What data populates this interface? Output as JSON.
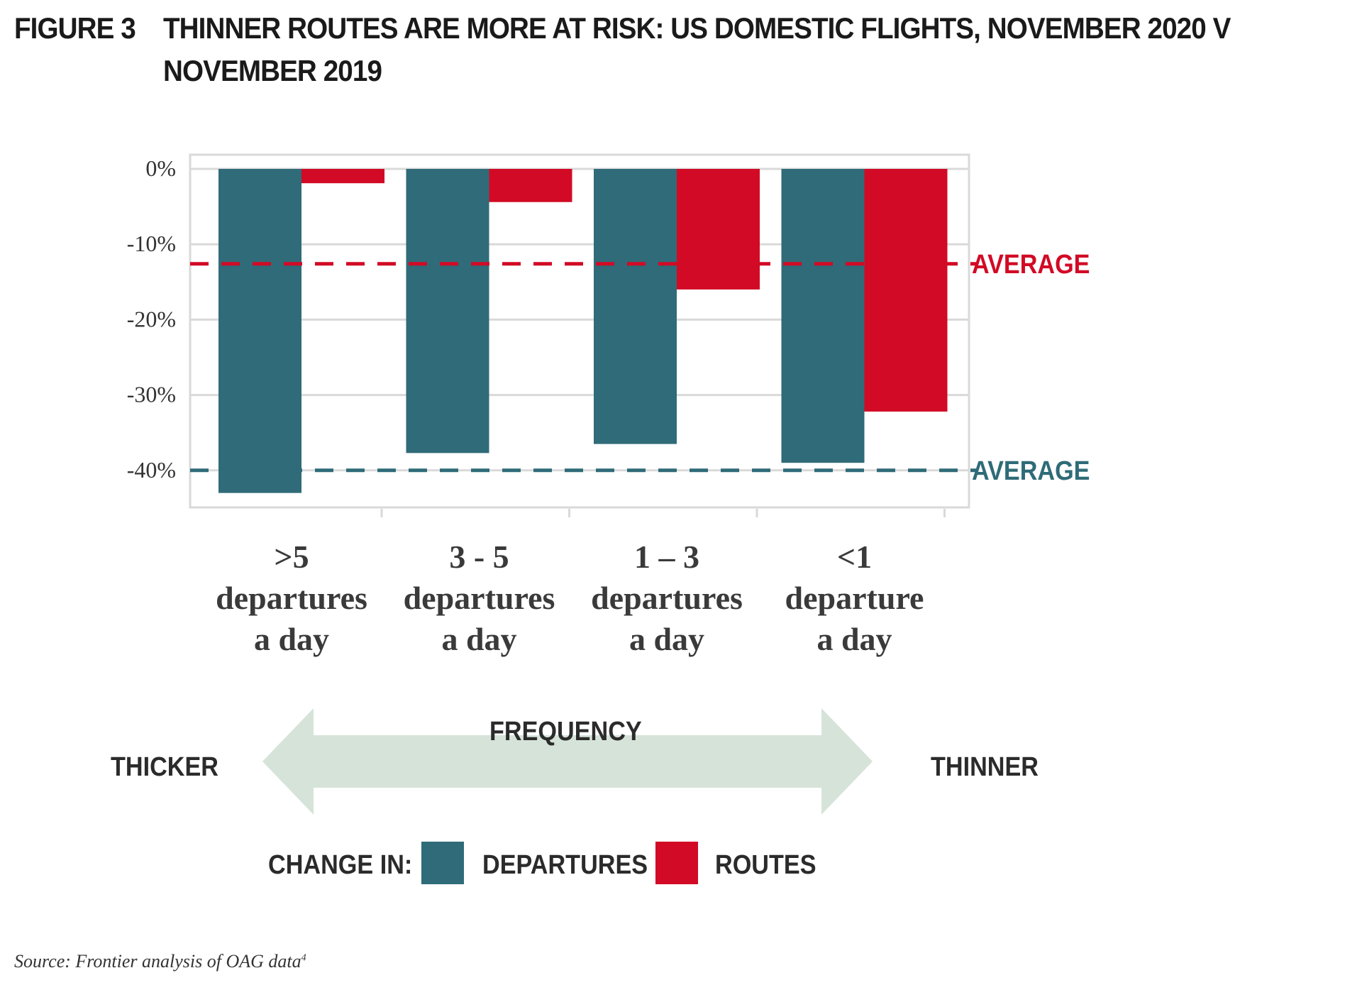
{
  "figure": {
    "number": "FIGURE 3",
    "title": "THINNER ROUTES ARE MORE AT RISK: US DOMESTIC FLIGHTS, NOVEMBER 2020 V NOVEMBER 2019"
  },
  "colors": {
    "departures": "#2f6b78",
    "routes": "#d20a25",
    "arrow": "#d6e3d9",
    "grid": "#d9d9d9",
    "text": "#2b2b2b"
  },
  "chart_data": {
    "type": "bar",
    "categories": [
      [
        ">5",
        "departures",
        "a day"
      ],
      [
        "3 - 5",
        "departures",
        "a day"
      ],
      [
        "1 – 3",
        "departures",
        "a day"
      ],
      [
        "<1",
        "departure",
        "a day"
      ]
    ],
    "series": [
      {
        "name": "DEPARTURES",
        "values": [
          -43,
          -37.7,
          -36.5,
          -39
        ]
      },
      {
        "name": "ROUTES",
        "values": [
          -1.9,
          -4.4,
          -16,
          -32.2
        ]
      }
    ],
    "reference_lines": [
      {
        "series": "ROUTES",
        "label": "AVERAGE",
        "value": -12.6
      },
      {
        "series": "DEPARTURES",
        "label": "AVERAGE",
        "value": -40
      }
    ],
    "yticks": [
      "0%",
      "-10%",
      "-20%",
      "-30%",
      "-40%"
    ],
    "ytick_values": [
      0,
      -10,
      -20,
      -30,
      -40
    ],
    "ylim": [
      -45,
      0
    ],
    "grid": true,
    "title": "",
    "xlabel": "",
    "ylabel": ""
  },
  "frequency": {
    "label": "FREQUENCY",
    "left": "THICKER",
    "right": "THINNER"
  },
  "legend": {
    "title": "CHANGE IN:",
    "departures": "DEPARTURES",
    "routes": "ROUTES"
  },
  "source": {
    "text": "Source: Frontier analysis of OAG data",
    "footnote": "4"
  }
}
